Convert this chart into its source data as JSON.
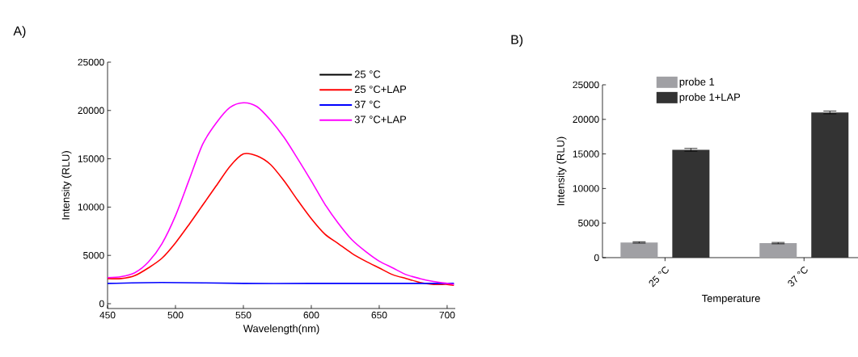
{
  "chart_data": [
    {
      "type": "line",
      "title": "A)",
      "xlabel": "Wavelength(nm)",
      "ylabel": "Intensity (RLU)",
      "xlim": [
        450,
        706
      ],
      "ylim": [
        -500,
        25000
      ],
      "xticks": [
        450,
        500,
        550,
        600,
        650,
        700
      ],
      "yticks": [
        0,
        5000,
        10000,
        15000,
        20000,
        25000
      ],
      "legend": "top right",
      "marker": "none",
      "line_style": "solid",
      "series": [
        {
          "name": "25 °C",
          "color": "#000000"
        },
        {
          "name": "25 °C+LAP",
          "color": "#ff0000",
          "x": [
            450,
            460,
            470,
            480,
            490,
            500,
            510,
            520,
            530,
            540,
            550,
            560,
            570,
            580,
            590,
            600,
            610,
            620,
            630,
            640,
            650,
            660,
            670,
            680,
            690,
            700,
            705
          ],
          "values": [
            2600,
            2600,
            2900,
            3700,
            4700,
            6300,
            8200,
            10200,
            12200,
            14200,
            15500,
            15300,
            14400,
            12700,
            10700,
            8800,
            7200,
            6200,
            5200,
            4400,
            3700,
            3000,
            2600,
            2200,
            2000,
            2000,
            1900
          ]
        },
        {
          "name": "37 °C",
          "color": "#0000ff",
          "x": [
            450,
            490,
            550,
            600,
            650,
            705
          ],
          "values": [
            2100,
            2200,
            2100,
            2100,
            2100,
            2100
          ]
        },
        {
          "name": "37 °C+LAP",
          "color": "#ff00ff",
          "x": [
            450,
            460,
            470,
            480,
            490,
            500,
            510,
            520,
            530,
            540,
            550,
            560,
            570,
            580,
            590,
            600,
            610,
            620,
            630,
            640,
            650,
            660,
            670,
            680,
            690,
            700,
            705
          ],
          "values": [
            2700,
            2800,
            3200,
            4300,
            6200,
            9100,
            12800,
            16500,
            18700,
            20300,
            20800,
            20400,
            19000,
            17200,
            15000,
            12700,
            10300,
            8300,
            6600,
            5400,
            4400,
            3700,
            3000,
            2600,
            2300,
            2100,
            2000
          ]
        }
      ]
    },
    {
      "type": "bar",
      "title": "B)",
      "xlabel": "Temperature",
      "ylabel": "Intensity (RLU)",
      "categories": [
        "25 °C",
        "37 °C"
      ],
      "ylim": [
        0,
        25000
      ],
      "yticks": [
        0,
        5000,
        10000,
        15000,
        20000,
        25000
      ],
      "legend": "top",
      "series": [
        {
          "name": "probe 1",
          "color": "#a0a0a4",
          "values": [
            2200,
            2100
          ],
          "errors": [
            100,
            100
          ]
        },
        {
          "name": "probe 1+LAP",
          "color": "#333333",
          "values": [
            15600,
            21000
          ],
          "errors": [
            200,
            200
          ]
        }
      ]
    }
  ]
}
